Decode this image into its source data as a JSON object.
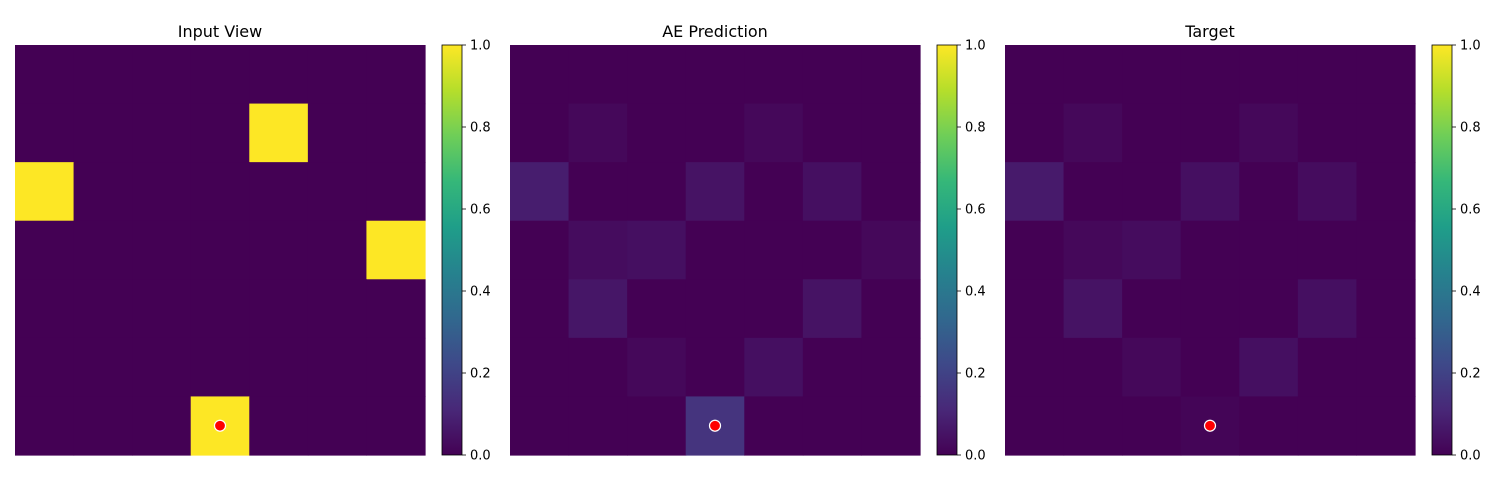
{
  "colors": {
    "viridis": [
      "#440154",
      "#482878",
      "#3e4989",
      "#31688e",
      "#26828e",
      "#1f9e89",
      "#35b779",
      "#6ece58",
      "#b5de2b",
      "#fde725"
    ],
    "marker_fill": "#ff0000",
    "marker_edge": "#ffffff"
  },
  "chart_data": [
    {
      "type": "heatmap",
      "title": "Input View",
      "rows": 7,
      "cols": 7,
      "vmin": 0,
      "vmax": 1,
      "grid": false,
      "colorbar_ticks": [
        "0.0",
        "0.2",
        "0.4",
        "0.6",
        "0.8",
        "1.0"
      ],
      "values": [
        [
          0,
          0,
          0,
          0,
          0,
          0,
          0
        ],
        [
          0,
          0,
          0,
          0,
          1,
          0,
          0
        ],
        [
          1,
          0,
          0,
          0,
          0,
          0,
          0
        ],
        [
          0,
          0,
          0,
          0,
          0,
          0,
          1
        ],
        [
          0,
          0,
          0,
          0,
          0,
          0,
          0
        ],
        [
          0,
          0,
          0,
          0,
          0,
          0,
          0
        ],
        [
          0,
          0,
          0,
          1,
          0,
          0,
          0
        ]
      ],
      "marker": {
        "row": 6.5,
        "col": 3.5
      }
    },
    {
      "type": "heatmap",
      "title": "AE Prediction",
      "rows": 7,
      "cols": 7,
      "vmin": 0,
      "vmax": 1,
      "grid": false,
      "colorbar_ticks": [
        "0.0",
        "0.2",
        "0.4",
        "0.6",
        "0.8",
        "1.0"
      ],
      "values": [
        [
          0,
          0,
          0,
          0,
          0,
          0,
          0
        ],
        [
          0,
          0.02,
          0,
          0,
          0.02,
          0,
          0
        ],
        [
          0.08,
          0,
          0,
          0.05,
          0,
          0.04,
          0
        ],
        [
          0,
          0.03,
          0.04,
          0,
          0,
          0,
          0.02
        ],
        [
          0,
          0.06,
          0,
          0,
          0,
          0.05,
          0
        ],
        [
          0,
          0,
          0.02,
          0,
          0.04,
          0,
          0
        ],
        [
          0,
          0,
          0,
          0.15,
          0,
          0,
          0
        ]
      ],
      "marker": {
        "row": 6.5,
        "col": 3.5
      }
    },
    {
      "type": "heatmap",
      "title": "Target",
      "rows": 7,
      "cols": 7,
      "vmin": 0,
      "vmax": 1,
      "grid": false,
      "colorbar_ticks": [
        "0.0",
        "0.2",
        "0.4",
        "0.6",
        "0.8",
        "1.0"
      ],
      "values": [
        [
          0,
          0,
          0,
          0,
          0,
          0,
          0
        ],
        [
          0,
          0.02,
          0,
          0,
          0.02,
          0,
          0
        ],
        [
          0.07,
          0,
          0,
          0.04,
          0,
          0.03,
          0
        ],
        [
          0,
          0.02,
          0.03,
          0,
          0,
          0,
          0
        ],
        [
          0,
          0.05,
          0,
          0,
          0,
          0.04,
          0
        ],
        [
          0,
          0,
          0.02,
          0,
          0.04,
          0,
          0
        ],
        [
          0,
          0,
          0,
          0.01,
          0,
          0,
          0
        ]
      ],
      "marker": {
        "row": 6.5,
        "col": 3.5
      }
    }
  ]
}
